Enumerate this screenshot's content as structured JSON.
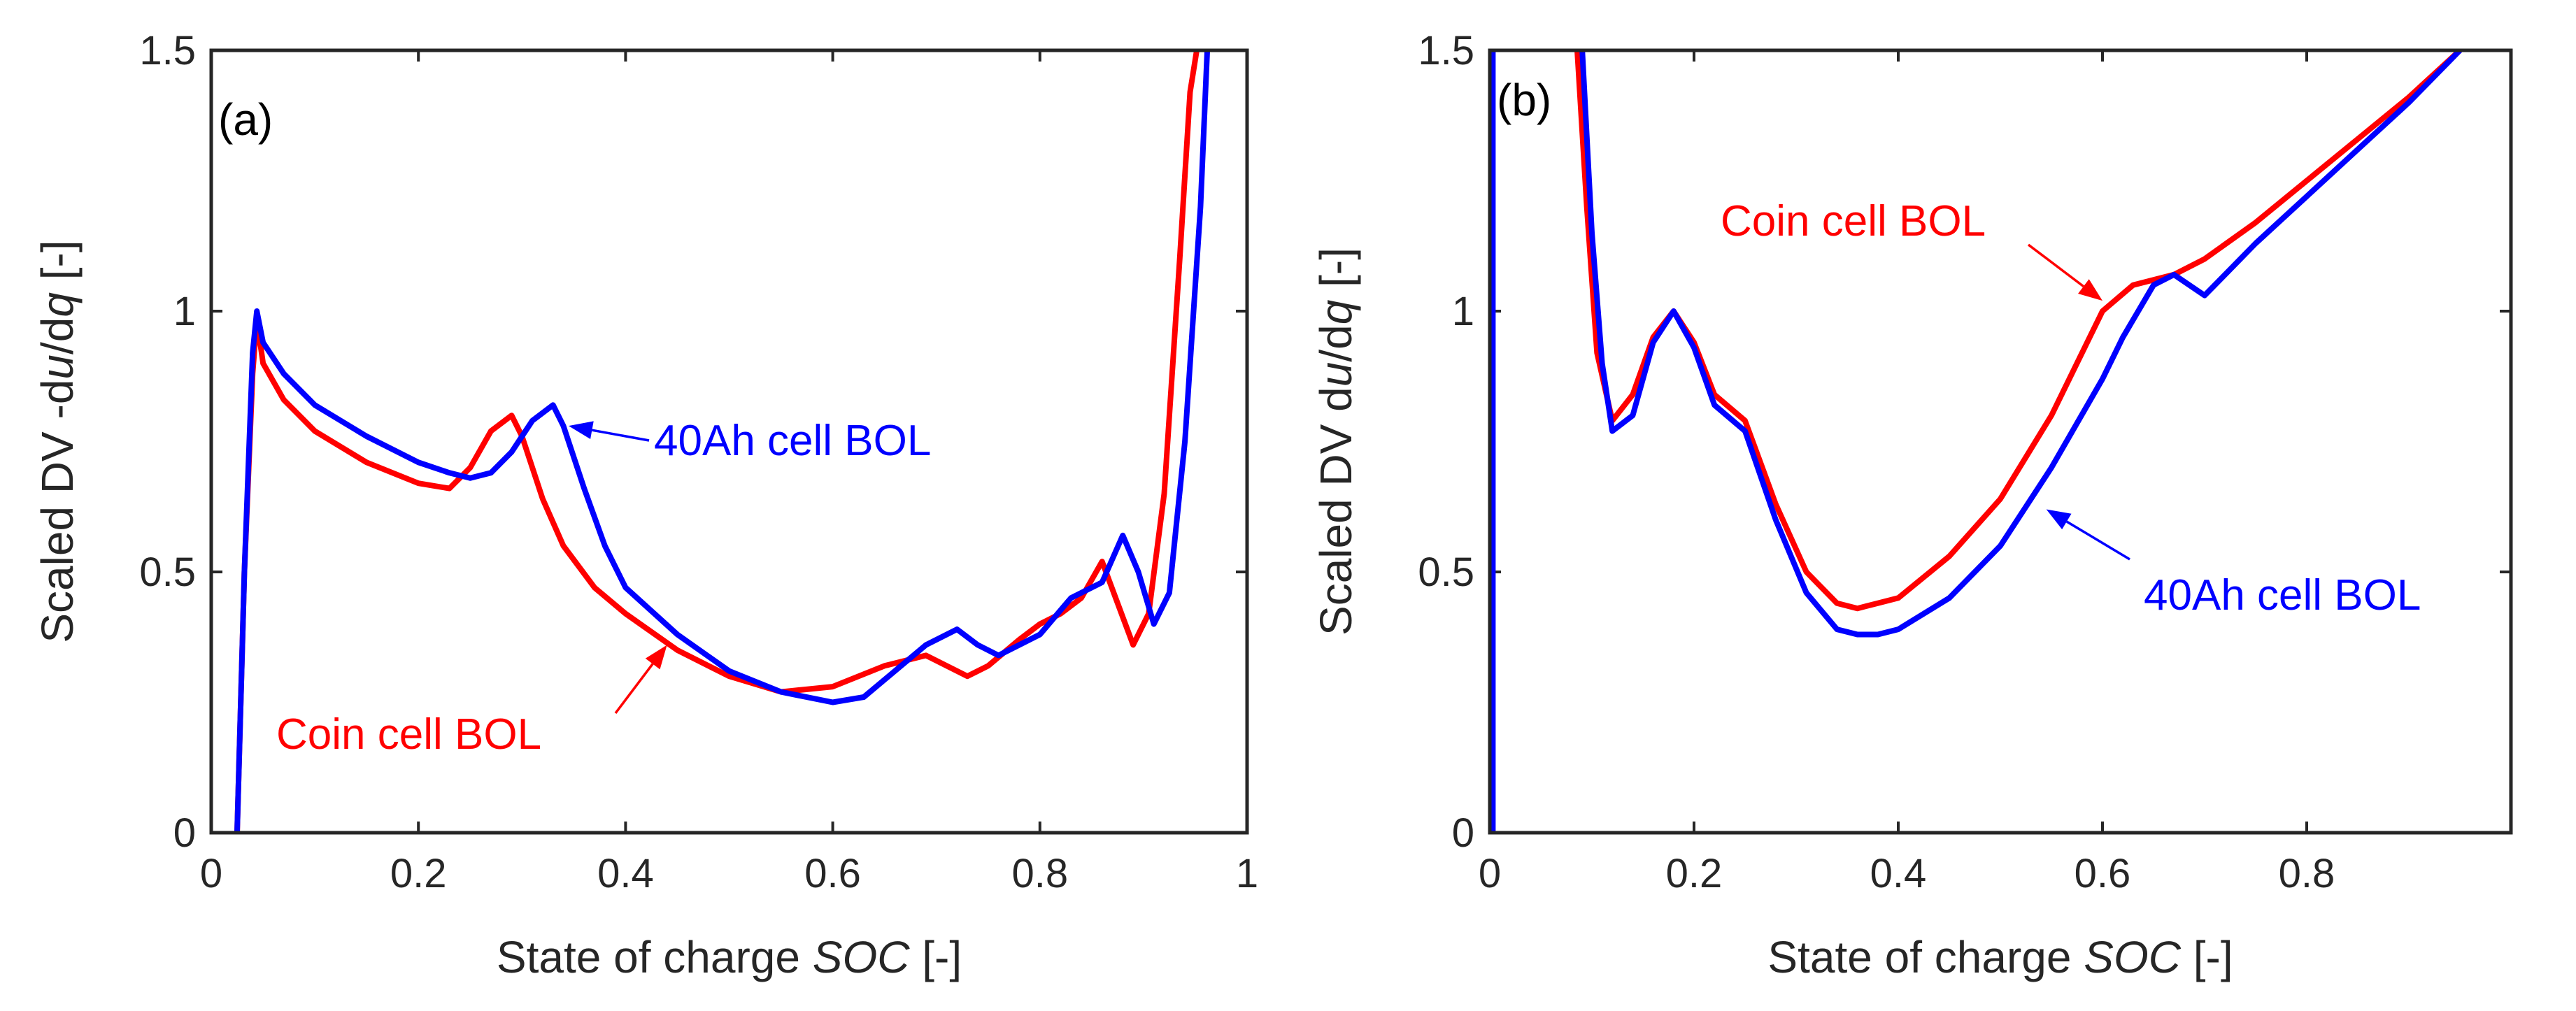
{
  "figure": {
    "chart_data": [
      {
        "type": "line",
        "panel": "(a)",
        "xlabel": "State of charge",
        "xlabel_var": "SOC",
        "xlabel_unit": "[-]",
        "ylabel": "Scaled DV -du/dq [-]",
        "ylabel_parts": [
          "Scaled DV -d",
          "u",
          "/d",
          "q",
          " [-]"
        ],
        "xlim": [
          0,
          1
        ],
        "ylim": [
          0,
          1.5
        ],
        "xticks": [
          0,
          0.2,
          0.4,
          0.6,
          0.8,
          1
        ],
        "xtick_labels": [
          "0",
          "0.2",
          "0.4",
          "0.6",
          "0.8",
          "1"
        ],
        "yticks": [
          0,
          0.5,
          1,
          1.5
        ],
        "ytick_labels": [
          "0",
          "0.5",
          "1",
          "1.5"
        ],
        "series": [
          {
            "name": "Coin cell BOL",
            "color": "#ff0000",
            "x": [
              0.025,
              0.032,
              0.04,
              0.044,
              0.05,
              0.07,
              0.1,
              0.15,
              0.2,
              0.23,
              0.25,
              0.27,
              0.29,
              0.3,
              0.32,
              0.34,
              0.37,
              0.4,
              0.45,
              0.5,
              0.55,
              0.6,
              0.65,
              0.69,
              0.71,
              0.73,
              0.75,
              0.78,
              0.8,
              0.82,
              0.84,
              0.86,
              0.875,
              0.89,
              0.905,
              0.92,
              0.935,
              0.945,
              0.953
            ],
            "y": [
              0,
              0.5,
              0.88,
              0.985,
              0.9,
              0.83,
              0.77,
              0.71,
              0.67,
              0.66,
              0.7,
              0.77,
              0.8,
              0.76,
              0.64,
              0.55,
              0.47,
              0.42,
              0.35,
              0.3,
              0.27,
              0.28,
              0.32,
              0.34,
              0.32,
              0.3,
              0.32,
              0.37,
              0.4,
              0.42,
              0.45,
              0.52,
              0.44,
              0.36,
              0.42,
              0.65,
              1.1,
              1.42,
              1.52
            ]
          },
          {
            "name": "40Ah cell BOL",
            "color": "#0000ff",
            "x": [
              0.025,
              0.032,
              0.04,
              0.044,
              0.05,
              0.07,
              0.1,
              0.15,
              0.2,
              0.23,
              0.25,
              0.27,
              0.29,
              0.31,
              0.33,
              0.34,
              0.36,
              0.38,
              0.4,
              0.45,
              0.5,
              0.55,
              0.6,
              0.63,
              0.66,
              0.69,
              0.72,
              0.74,
              0.76,
              0.8,
              0.83,
              0.86,
              0.88,
              0.895,
              0.91,
              0.925,
              0.94,
              0.955,
              0.962
            ],
            "y": [
              0,
              0.5,
              0.92,
              1.0,
              0.94,
              0.88,
              0.82,
              0.76,
              0.71,
              0.69,
              0.68,
              0.69,
              0.73,
              0.79,
              0.82,
              0.78,
              0.66,
              0.55,
              0.47,
              0.38,
              0.31,
              0.27,
              0.25,
              0.26,
              0.31,
              0.36,
              0.39,
              0.36,
              0.34,
              0.38,
              0.45,
              0.48,
              0.57,
              0.5,
              0.4,
              0.46,
              0.75,
              1.2,
              1.52
            ]
          }
        ],
        "annotations": [
          {
            "text": "40Ah cell BOL",
            "color": "#0000ff",
            "arrow_to": [
              0.345,
              0.78
            ]
          },
          {
            "text": "Coin cell BOL",
            "color": "#ff0000",
            "arrow_to": [
              0.44,
              0.36
            ]
          }
        ]
      },
      {
        "type": "line",
        "panel": "(b)",
        "xlabel": "State of charge",
        "xlabel_var": "SOC",
        "xlabel_unit": "[-]",
        "ylabel": "Scaled DV du/dq [-]",
        "ylabel_parts": [
          "Scaled DV d",
          "u",
          "/d",
          "q",
          " [-]"
        ],
        "xlim": [
          0,
          1
        ],
        "ylim": [
          0,
          1.5
        ],
        "xticks": [
          0,
          0.2,
          0.4,
          0.6,
          0.8
        ],
        "xtick_labels": [
          "0",
          "0.2",
          "0.4",
          "0.6",
          "0.8"
        ],
        "yticks": [
          0,
          0.5,
          1,
          1.5
        ],
        "ytick_labels": [
          "0",
          "0.5",
          "1",
          "1.5"
        ],
        "series": [
          {
            "name": "Coin cell BOL",
            "color": "#ff0000",
            "x": [
              0.002,
              0.002,
              0.085,
              0.095,
              0.105,
              0.12,
              0.14,
              0.16,
              0.18,
              0.2,
              0.22,
              0.25,
              0.28,
              0.31,
              0.34,
              0.36,
              0.38,
              0.4,
              0.45,
              0.5,
              0.55,
              0.6,
              0.63,
              0.67,
              0.7,
              0.75,
              0.8,
              0.85,
              0.9,
              0.95
            ],
            "y": [
              0,
              1.52,
              1.52,
              1.2,
              0.92,
              0.79,
              0.84,
              0.95,
              1.0,
              0.94,
              0.84,
              0.79,
              0.63,
              0.5,
              0.44,
              0.43,
              0.44,
              0.45,
              0.53,
              0.64,
              0.8,
              1.0,
              1.05,
              1.07,
              1.1,
              1.17,
              1.25,
              1.33,
              1.41,
              1.5
            ]
          },
          {
            "name": "40Ah cell BOL",
            "color": "#0000ff",
            "x": [
              0.003,
              0.003,
              0.09,
              0.1,
              0.11,
              0.12,
              0.14,
              0.16,
              0.18,
              0.2,
              0.22,
              0.25,
              0.28,
              0.31,
              0.34,
              0.36,
              0.38,
              0.4,
              0.45,
              0.5,
              0.55,
              0.6,
              0.62,
              0.65,
              0.67,
              0.7,
              0.72,
              0.75,
              0.8,
              0.85,
              0.9,
              0.96
            ],
            "y": [
              0,
              1.52,
              1.52,
              1.15,
              0.9,
              0.77,
              0.8,
              0.94,
              1.0,
              0.93,
              0.82,
              0.77,
              0.6,
              0.46,
              0.39,
              0.38,
              0.38,
              0.39,
              0.45,
              0.55,
              0.7,
              0.87,
              0.95,
              1.05,
              1.07,
              1.03,
              1.07,
              1.13,
              1.22,
              1.31,
              1.4,
              1.52
            ]
          }
        ],
        "annotations": [
          {
            "text": "Coin cell BOL",
            "color": "#ff0000",
            "arrow_to": [
              0.6,
              1.02
            ]
          },
          {
            "text": "40Ah cell BOL",
            "color": "#0000ff",
            "arrow_to": [
              0.545,
              0.62
            ]
          }
        ]
      }
    ]
  }
}
